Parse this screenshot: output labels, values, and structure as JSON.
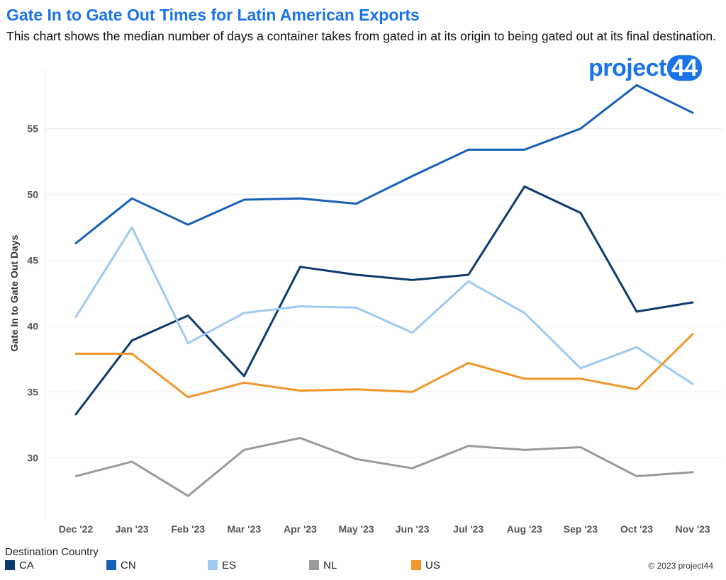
{
  "header": {
    "title": "Gate In to Gate Out Times for Latin American Exports",
    "subtitle": "This chart shows the median number of days a container takes from gated in at its origin to being gated out at its final destination."
  },
  "logo": {
    "word": "project",
    "num": "44",
    "color": "#1a73e8"
  },
  "legend": {
    "title": "Destination Country",
    "items": [
      {
        "label": "CA",
        "color": "#0d3a6e"
      },
      {
        "label": "CN",
        "color": "#1760b8"
      },
      {
        "label": "ES",
        "color": "#9ecaf1"
      },
      {
        "label": "NL",
        "color": "#9a9a9a"
      },
      {
        "label": "US",
        "color": "#f0962a"
      }
    ]
  },
  "footer": {
    "copyright": "© 2023 project44"
  },
  "chart_data": {
    "type": "line",
    "title": "Gate In to Gate Out Times for Latin American Exports",
    "xlabel": "",
    "ylabel": "Gate In to Gate Out Days",
    "categories": [
      "Dec '22",
      "Jan '23",
      "Feb '23",
      "Mar '23",
      "Apr '23",
      "May '23",
      "Jun '23",
      "Jul '23",
      "Aug '23",
      "Sep '23",
      "Oct '23",
      "Nov '23"
    ],
    "yticks": [
      30,
      35,
      40,
      45,
      50,
      55
    ],
    "ylim": [
      25.5,
      59.5
    ],
    "grid": true,
    "legend_position": "bottom",
    "series": [
      {
        "name": "CA",
        "color": "#0d3a6e",
        "values": [
          33.3,
          38.9,
          40.8,
          36.2,
          44.5,
          43.9,
          43.5,
          43.9,
          50.6,
          48.6,
          41.1,
          41.8
        ]
      },
      {
        "name": "CN",
        "color": "#1760b8",
        "values": [
          46.3,
          49.7,
          47.7,
          49.6,
          49.7,
          49.3,
          51.4,
          53.4,
          53.4,
          55.0,
          58.3,
          56.2
        ]
      },
      {
        "name": "ES",
        "color": "#9ecaf1",
        "values": [
          40.7,
          47.5,
          38.7,
          41.0,
          41.5,
          41.4,
          39.5,
          43.4,
          41.0,
          36.8,
          38.4,
          35.6
        ]
      },
      {
        "name": "NL",
        "color": "#9a9a9a",
        "values": [
          28.6,
          29.7,
          27.1,
          30.6,
          31.5,
          29.9,
          29.2,
          30.9,
          30.6,
          30.8,
          28.6,
          28.9
        ]
      },
      {
        "name": "US",
        "color": "#f0962a",
        "values": [
          37.9,
          37.9,
          34.6,
          35.7,
          35.1,
          35.2,
          35.0,
          37.2,
          36.0,
          36.0,
          35.2,
          39.4
        ]
      }
    ]
  }
}
